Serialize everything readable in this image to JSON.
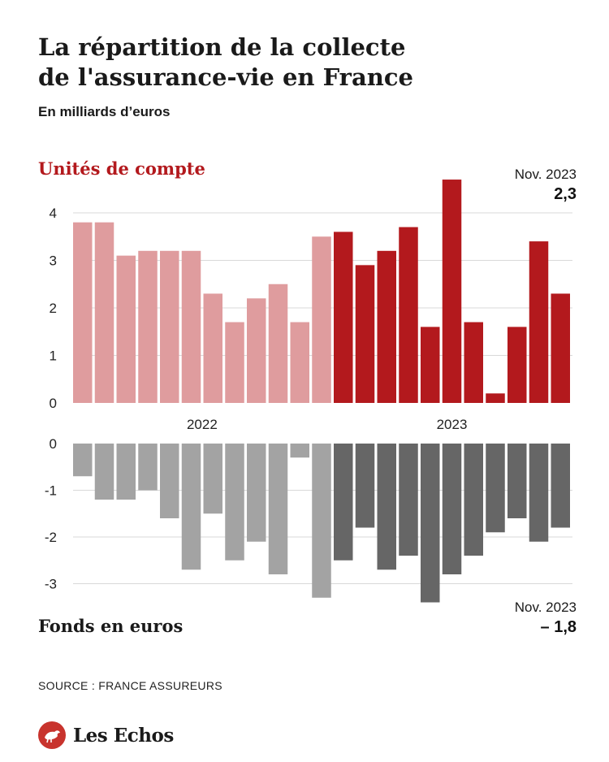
{
  "title_line1": "La répartition de la collecte",
  "title_line2": "de l'assurance-vie en France",
  "subtitle": "En milliards d’euros",
  "source": "SOURCE : FRANCE ASSUREURS",
  "brand": "Les Echos",
  "colors": {
    "uc_2022": "#df9c9e",
    "uc_2023": "#b3191d",
    "fe_2022": "#a3a3a3",
    "fe_2023": "#666666",
    "grid": "#d9d9d9",
    "brand_red": "#c8332d"
  },
  "chart_data": [
    {
      "type": "bar",
      "series": [
        {
          "name": "Unités de compte",
          "values": [
            3.8,
            3.8,
            3.1,
            3.2,
            3.2,
            3.2,
            2.3,
            1.7,
            2.2,
            2.5,
            1.7,
            3.5,
            3.6,
            2.9,
            3.2,
            3.7,
            1.6,
            4.7,
            1.7,
            0.2,
            1.6,
            3.4,
            2.3
          ]
        }
      ],
      "year_groups": [
        {
          "label": "2022",
          "count": 12
        },
        {
          "label": "2023",
          "count": 11
        }
      ],
      "yticks": [
        "0",
        "1",
        "2",
        "3",
        "4"
      ],
      "ylim": [
        0,
        4.9
      ],
      "grid": true,
      "annotation": {
        "date": "Nov. 2023",
        "value": "2,3"
      }
    },
    {
      "type": "bar",
      "series": [
        {
          "name": "Fonds en euros",
          "values": [
            -0.7,
            -1.2,
            -1.2,
            -1.0,
            -1.6,
            -2.7,
            -1.5,
            -2.5,
            -2.1,
            -2.8,
            -0.3,
            -3.3,
            -2.5,
            -1.8,
            -2.7,
            -2.4,
            -3.4,
            -2.8,
            -2.4,
            -1.9,
            -1.6,
            -2.1,
            -1.8
          ]
        }
      ],
      "yticks": [
        "0",
        "-1",
        "-2",
        "-3"
      ],
      "ylim": [
        -3.5,
        0
      ],
      "grid": true,
      "annotation": {
        "date": "Nov. 2023",
        "value": "– 1,8"
      }
    }
  ]
}
